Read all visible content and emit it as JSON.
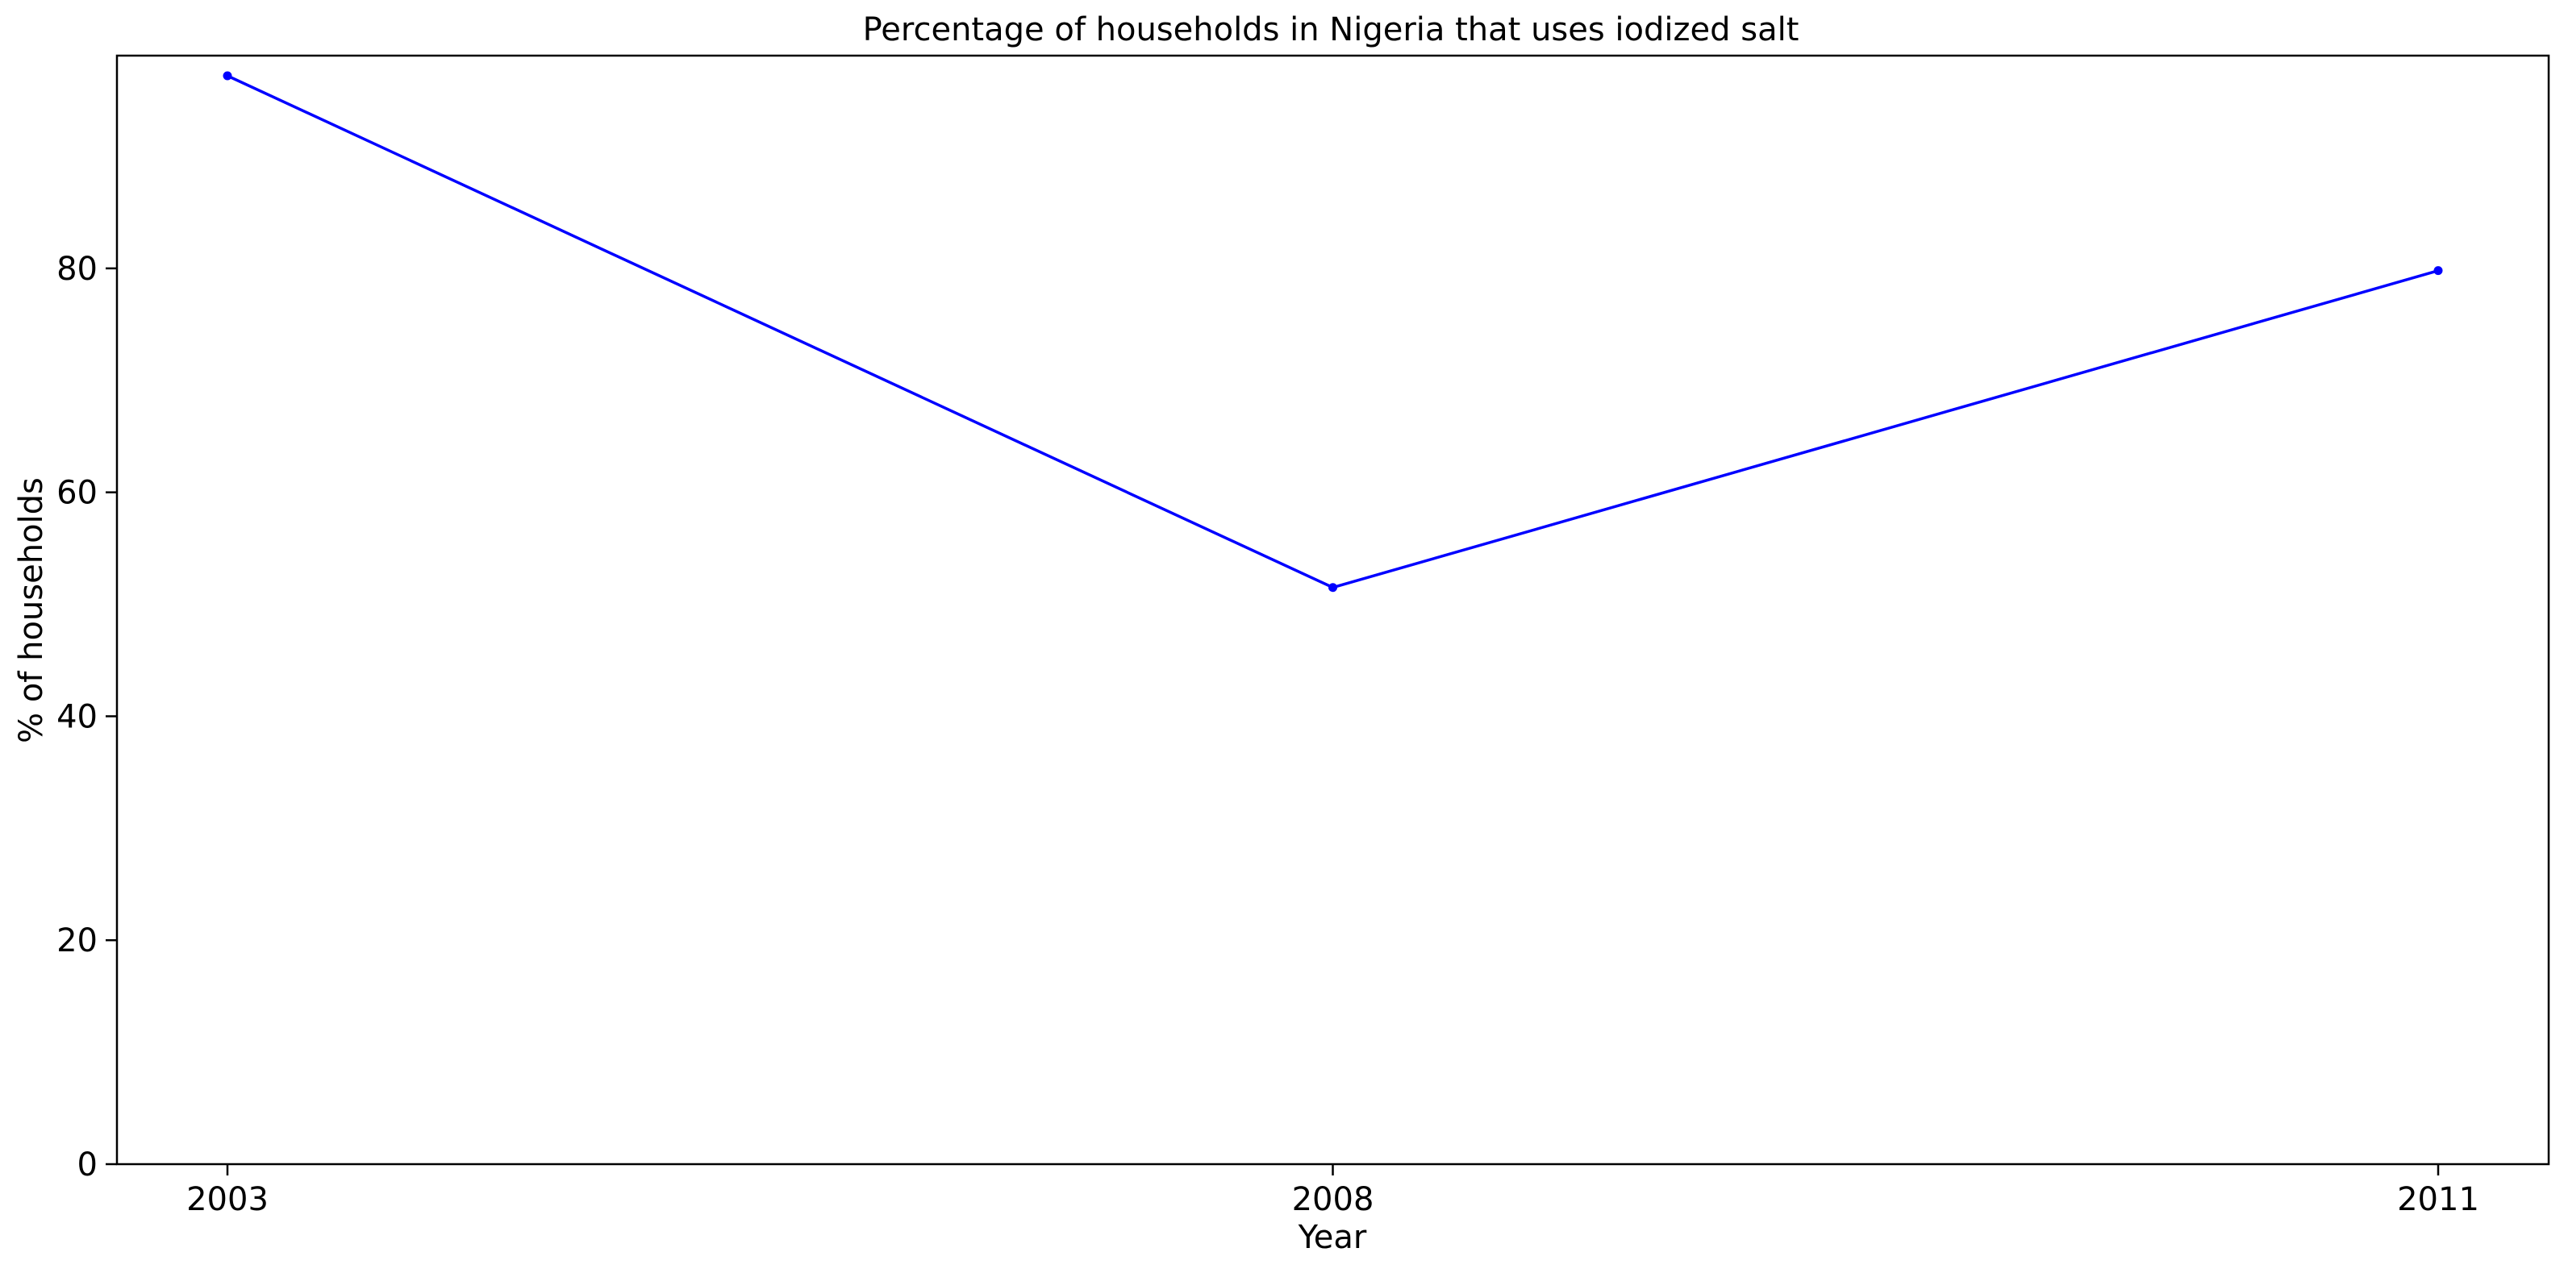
{
  "chart_data": {
    "type": "line",
    "title": "Percentage of households in Nigeria that uses iodized salt",
    "xlabel": "Year",
    "ylabel": "% of households",
    "categories": [
      "2003",
      "2008",
      "2011"
    ],
    "series": [
      {
        "values": [
          97.2,
          51.5,
          79.8
        ],
        "color": "#0000ff"
      }
    ],
    "yticks": [
      0,
      20,
      40,
      60,
      80
    ],
    "ylim": [
      0,
      99
    ],
    "grid": false,
    "legend": "none"
  }
}
